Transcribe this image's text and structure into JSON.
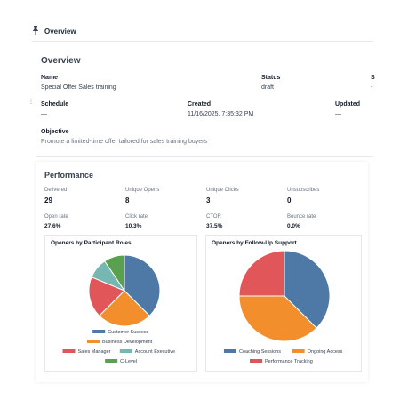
{
  "header": {
    "title": "Overview"
  },
  "overview": {
    "heading": "Overview",
    "name_label": "Name",
    "name_value": "Special Offer Sales training",
    "status_label": "Status",
    "status_value": "draft",
    "col3_label": "S",
    "col3_value": "-",
    "schedule_label": "Schedule",
    "schedule_value": "—",
    "created_label": "Created",
    "created_value": "11/16/2025, 7:35:32 PM",
    "updated_label": "Updated",
    "updated_value": "—",
    "objective_label": "Objective",
    "objective_value": "Promote a limited-time offer tailored for sales training buyers"
  },
  "performance": {
    "heading": "Performance",
    "metrics": [
      {
        "label": "Delivered",
        "value": "29"
      },
      {
        "label": "Unique Opens",
        "value": "8"
      },
      {
        "label": "Unique Clicks",
        "value": "3"
      },
      {
        "label": "Unsubscribes",
        "value": "0"
      }
    ],
    "rates": [
      {
        "label": "Open rate",
        "value": "27.6%"
      },
      {
        "label": "Click rate",
        "value": "10.3%"
      },
      {
        "label": "CTOR",
        "value": "37.5%"
      },
      {
        "label": "Bounce rate",
        "value": "0.0%"
      }
    ]
  },
  "chart_data": [
    {
      "type": "pie",
      "title": "Openers by Participant Roles",
      "categories": [
        "Customer Success",
        "Business Development",
        "Sales Manager",
        "Account Executive",
        "C-Level"
      ],
      "values": [
        3,
        2,
        1.5,
        0.75,
        0.75
      ],
      "colors": [
        "#4e79a7",
        "#f28e2b",
        "#e15759",
        "#76b7b2",
        "#59a14f"
      ],
      "legend": "bottom"
    },
    {
      "type": "pie",
      "title": "Openers by Follow-Up Support",
      "categories": [
        "Coaching Sessions",
        "Ongoing Access",
        "Performance Tracking"
      ],
      "values": [
        3,
        3,
        2
      ],
      "colors": [
        "#4e79a7",
        "#f28e2b",
        "#e15759"
      ],
      "legend": "bottom"
    }
  ]
}
